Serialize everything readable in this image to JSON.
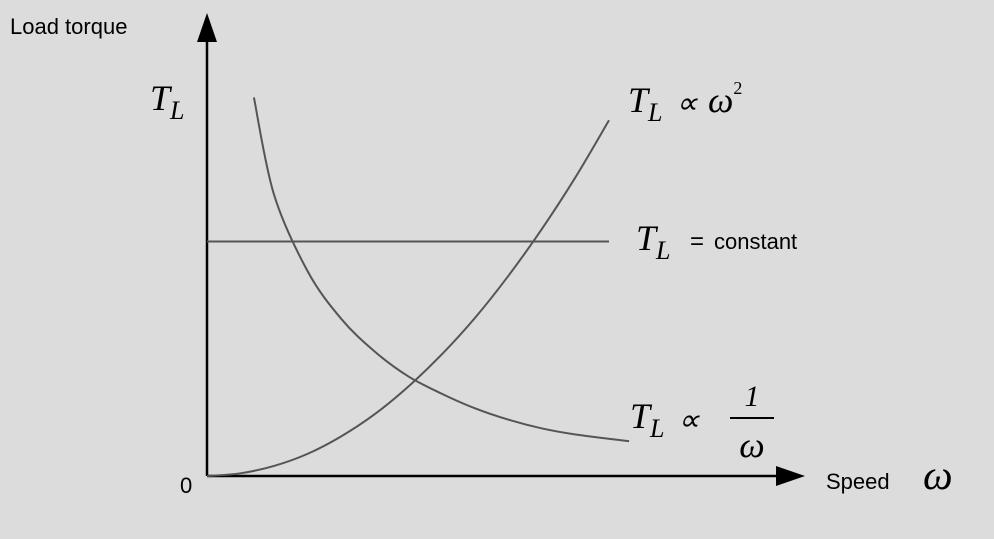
{
  "chart_data": {
    "type": "line",
    "title": "",
    "ylabel": "Load torque",
    "ylabel_symbol": "T",
    "ylabel_subscript": "L",
    "xlabel": "Speed",
    "xlabel_symbol": "ω",
    "origin_label": "0",
    "xlim": [
      0,
      6
    ],
    "ylim": [
      0,
      7
    ],
    "grid": false,
    "series": [
      {
        "label_symbol": "T",
        "label_subscript": "L",
        "label_relation": "∝",
        "label_rhs": "ω",
        "label_superscript": "2",
        "x": [
          0.0,
          0.5,
          1.0,
          1.5,
          2.0,
          2.5,
          3.0,
          3.5,
          4.0,
          4.5,
          5.0,
          5.5,
          6.0
        ],
        "y": [
          0.0,
          0.04,
          0.15,
          0.33,
          0.59,
          0.92,
          1.33,
          1.81,
          2.36,
          2.99,
          3.69,
          4.46,
          5.31
        ]
      },
      {
        "label_symbol": "T",
        "label_subscript": "L",
        "label_relation": "=",
        "label_text": "constant",
        "x": [
          0.0,
          6.0
        ],
        "y": [
          3.5,
          3.5
        ]
      },
      {
        "label_symbol": "T",
        "label_subscript": "L",
        "label_relation": "∝",
        "label_num": "1",
        "label_den": "ω",
        "x": [
          0.7,
          1.0,
          1.5,
          2.0,
          2.5,
          3.0,
          3.5,
          4.0,
          4.5,
          5.0,
          5.5,
          6.3
        ],
        "y": [
          5.65,
          4.2,
          3.06,
          2.35,
          1.86,
          1.49,
          1.23,
          1.01,
          0.84,
          0.71,
          0.62,
          0.52
        ]
      }
    ]
  },
  "colors": {
    "background": "#dcdcdd",
    "curves": "#555555",
    "axes": "#000000"
  }
}
